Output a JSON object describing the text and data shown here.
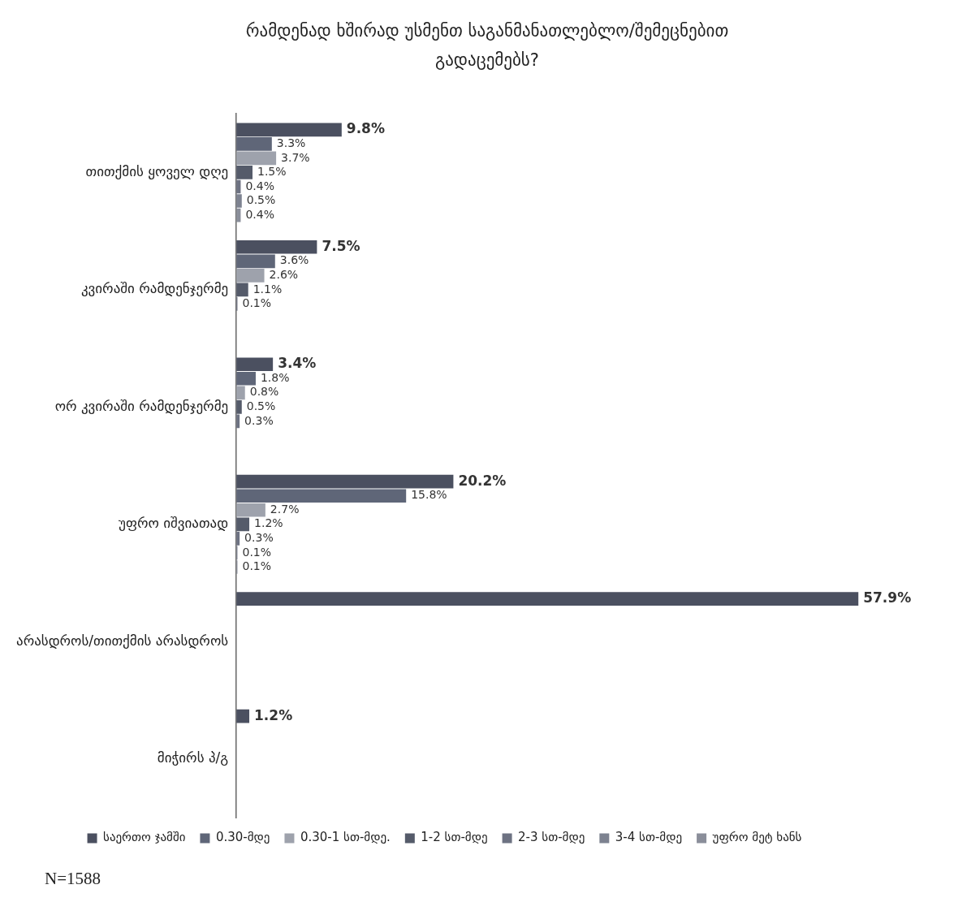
{
  "chart_data": {
    "type": "bar",
    "orientation": "horizontal",
    "title": "რამდენად ხშირად უსმენთ საგანმანათლებლო/შემეცნებით გადაცემებს?",
    "categories": [
      "თითქმის ყოველ დღე",
      "კვირაში რამდენჯერმე",
      "ორ კვირაში რამდენჯერმე",
      "უფრო იშვიათად",
      "არასდროს/თითქმის არასდროს",
      "მიჭირს პ/გ"
    ],
    "series": [
      {
        "name": "საერთო ჯამში",
        "color": "#4b5060",
        "values": [
          9.8,
          7.5,
          3.4,
          20.2,
          57.9,
          1.2
        ],
        "value_labels": [
          "9.8%",
          "7.5%",
          "3.4%",
          "20.2%",
          "57.9%",
          "1.2%"
        ]
      },
      {
        "name": "0.30-მდე",
        "color": "#5f6678",
        "values": [
          3.3,
          3.6,
          1.8,
          15.8,
          null,
          null
        ],
        "value_labels": [
          "3.3%",
          "3.6%",
          "1.8%",
          "15.8%",
          null,
          null
        ]
      },
      {
        "name": "0.30-1 სთ-მდე.",
        "color": "#9ea2ac",
        "values": [
          3.7,
          2.6,
          0.8,
          2.7,
          null,
          null
        ],
        "value_labels": [
          "3.7%",
          "2.6%",
          "0.8%",
          "2.7%",
          null,
          null
        ]
      },
      {
        "name": "1-2 სთ-მდე",
        "color": "#555b6a",
        "values": [
          1.5,
          1.1,
          0.5,
          1.2,
          null,
          null
        ],
        "value_labels": [
          "1.5%",
          "1.1%",
          "0.5%",
          "1.2%",
          null,
          null
        ]
      },
      {
        "name": "2-3 სთ-მდე",
        "color": "#6d7282",
        "values": [
          0.4,
          0.1,
          0.3,
          0.3,
          null,
          null
        ],
        "value_labels": [
          "0.4%",
          "0.1%",
          "0.3%",
          "0.3%",
          null,
          null
        ]
      },
      {
        "name": "3-4 სთ-მდე",
        "color": "#7d8290",
        "values": [
          0.5,
          null,
          null,
          0.1,
          null,
          null
        ],
        "value_labels": [
          "0.5%",
          null,
          null,
          "0.1%",
          null,
          null
        ]
      },
      {
        "name": "უფრო მეტ ხანს",
        "color": "#8a8e9a",
        "values": [
          0.4,
          null,
          null,
          0.1,
          null,
          null
        ],
        "value_labels": [
          "0.4%",
          null,
          null,
          "0.1%",
          null,
          null
        ]
      }
    ],
    "tick_labels": "y",
    "grid": false,
    "legend": "bottom",
    "annotations": [
      "N=1588"
    ]
  }
}
